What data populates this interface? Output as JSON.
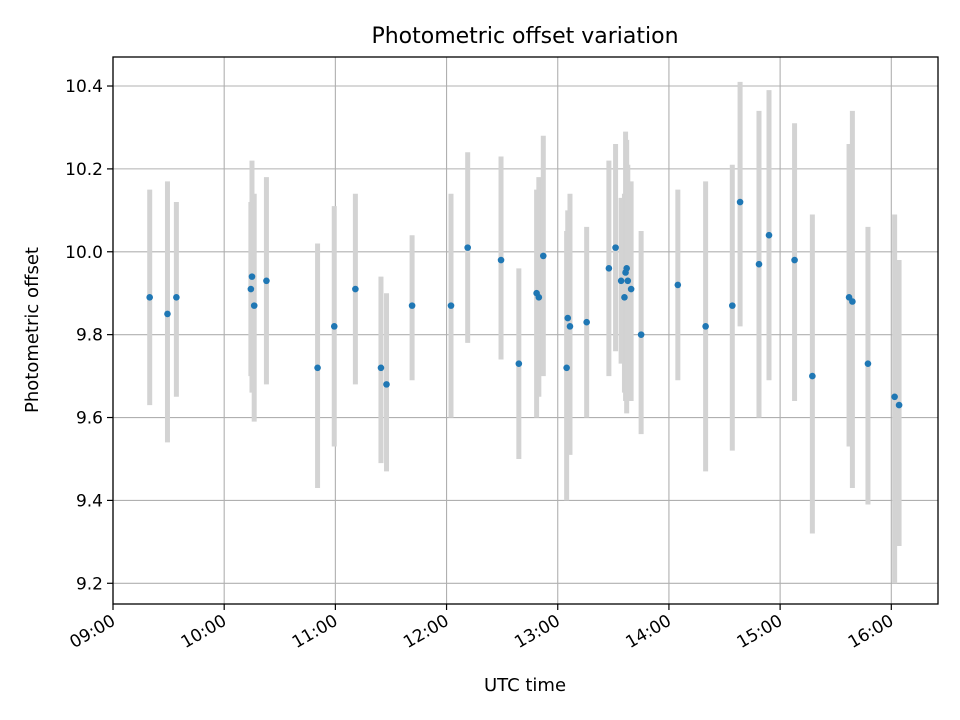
{
  "chart_data": {
    "type": "scatter",
    "title": "Photometric offset variation",
    "xlabel": "UTC time",
    "ylabel": "Photometric offset",
    "x_unit": "hour",
    "xlim": [
      9.0,
      16.42
    ],
    "ylim": [
      9.15,
      10.47
    ],
    "xticks": [
      9,
      10,
      11,
      12,
      13,
      14,
      15,
      16
    ],
    "xtick_labels": [
      "09:00",
      "10:00",
      "11:00",
      "12:00",
      "13:00",
      "14:00",
      "15:00",
      "16:00"
    ],
    "yticks": [
      9.2,
      9.4,
      9.6,
      9.8,
      10.0,
      10.2,
      10.4
    ],
    "ytick_labels": [
      "9.2",
      "9.4",
      "9.6",
      "9.8",
      "10.0",
      "10.2",
      "10.4"
    ],
    "grid": true,
    "point_color": "#1f77b4",
    "errorbar_color": "#d3d3d3",
    "series": [
      {
        "x": [
          9.33,
          9.49,
          9.57,
          10.24,
          10.25,
          10.27,
          10.38,
          10.84,
          10.99,
          11.18,
          11.41,
          11.46,
          11.69,
          12.04,
          12.19,
          12.49,
          12.65,
          12.81,
          12.83,
          12.87,
          13.08,
          13.09,
          13.11,
          13.26,
          13.46,
          13.52,
          13.57,
          13.6,
          13.61,
          13.62,
          13.63,
          13.66,
          13.75,
          14.08,
          14.33,
          14.57,
          14.64,
          14.81,
          14.9,
          15.13,
          15.29,
          15.62,
          15.65,
          15.79,
          16.03,
          16.07
        ],
        "y": [
          9.89,
          9.85,
          9.89,
          9.91,
          9.94,
          9.87,
          9.93,
          9.72,
          9.82,
          9.91,
          9.72,
          9.68,
          9.87,
          9.87,
          10.01,
          9.98,
          9.73,
          9.9,
          9.89,
          9.99,
          9.72,
          9.84,
          9.82,
          9.83,
          9.96,
          10.01,
          9.93,
          9.89,
          9.95,
          9.96,
          9.93,
          9.91,
          9.8,
          9.92,
          9.82,
          9.87,
          10.12,
          9.97,
          10.04,
          9.98,
          9.7,
          9.89,
          9.88,
          9.73,
          9.65,
          9.63
        ],
        "yerr_low": [
          9.63,
          9.54,
          9.65,
          9.7,
          9.66,
          9.59,
          9.68,
          9.43,
          9.53,
          9.68,
          9.49,
          9.47,
          9.69,
          9.6,
          9.78,
          9.74,
          9.5,
          9.6,
          9.65,
          9.7,
          9.4,
          9.6,
          9.51,
          9.6,
          9.7,
          9.76,
          9.73,
          9.66,
          9.64,
          9.61,
          9.68,
          9.64,
          9.56,
          9.69,
          9.47,
          9.52,
          9.82,
          9.6,
          9.69,
          9.64,
          9.32,
          9.53,
          9.43,
          9.39,
          9.2,
          9.29
        ],
        "yerr_high": [
          10.15,
          10.17,
          10.12,
          10.12,
          10.22,
          10.14,
          10.18,
          10.02,
          10.11,
          10.14,
          9.94,
          9.9,
          10.04,
          10.14,
          10.24,
          10.23,
          9.96,
          10.15,
          10.18,
          10.28,
          10.05,
          10.1,
          10.14,
          10.06,
          10.22,
          10.26,
          10.13,
          10.14,
          10.29,
          10.27,
          10.21,
          10.17,
          10.05,
          10.15,
          10.17,
          10.21,
          10.41,
          10.34,
          10.39,
          10.31,
          10.09,
          10.26,
          10.34,
          10.06,
          10.09,
          9.98
        ]
      }
    ]
  }
}
